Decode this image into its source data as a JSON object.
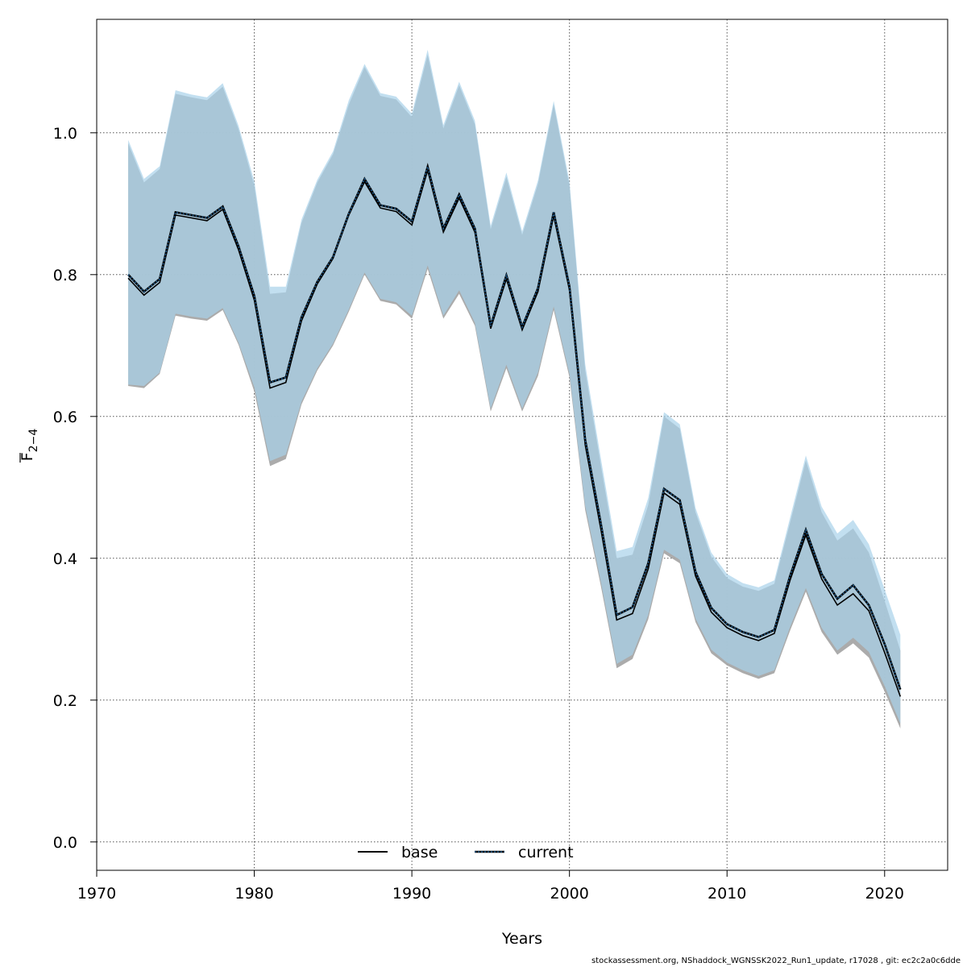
{
  "chart_data": {
    "type": "line",
    "xlabel": "Years",
    "ylabel_main": "F",
    "ylabel_sub": "2−4",
    "xlim": [
      1970,
      2024
    ],
    "ylim": [
      -0.04,
      1.16
    ],
    "xticks": [
      1970,
      1980,
      1990,
      2000,
      2010,
      2020
    ],
    "yticks": [
      0.0,
      0.2,
      0.4,
      0.6,
      0.8,
      1.0
    ],
    "ytick_labels": [
      "0.0",
      "0.2",
      "0.4",
      "0.6",
      "0.8",
      "1.0"
    ],
    "grid": true,
    "legend_position": "bottom-center",
    "x": [
      1972,
      1973,
      1974,
      1975,
      1976,
      1977,
      1978,
      1979,
      1980,
      1981,
      1982,
      1983,
      1984,
      1985,
      1986,
      1987,
      1988,
      1989,
      1990,
      1991,
      1992,
      1993,
      1994,
      1995,
      1996,
      1997,
      1998,
      1999,
      2000,
      2001,
      2002,
      2003,
      2004,
      2005,
      2006,
      2007,
      2008,
      2009,
      2010,
      2011,
      2012,
      2013,
      2014,
      2015,
      2016,
      2017,
      2018,
      2019,
      2020,
      2021
    ],
    "series": [
      {
        "name": "base",
        "style": "solid",
        "color": "#000000",
        "band_color": "#a6a6a6",
        "values": [
          0.795,
          0.771,
          0.789,
          0.884,
          0.88,
          0.876,
          0.892,
          0.835,
          0.764,
          0.64,
          0.648,
          0.735,
          0.787,
          0.823,
          0.884,
          0.931,
          0.894,
          0.889,
          0.87,
          0.947,
          0.86,
          0.908,
          0.86,
          0.724,
          0.794,
          0.722,
          0.776,
          0.883,
          0.778,
          0.56,
          0.44,
          0.313,
          0.322,
          0.385,
          0.492,
          0.476,
          0.375,
          0.324,
          0.302,
          0.291,
          0.284,
          0.294,
          0.369,
          0.433,
          0.371,
          0.334,
          0.35,
          0.326,
          0.267,
          0.205
        ],
        "lower": [
          0.643,
          0.64,
          0.66,
          0.742,
          0.738,
          0.735,
          0.75,
          0.701,
          0.635,
          0.53,
          0.54,
          0.617,
          0.665,
          0.7,
          0.748,
          0.8,
          0.763,
          0.758,
          0.738,
          0.808,
          0.738,
          0.773,
          0.728,
          0.607,
          0.668,
          0.607,
          0.657,
          0.75,
          0.655,
          0.468,
          0.36,
          0.245,
          0.258,
          0.314,
          0.407,
          0.393,
          0.31,
          0.266,
          0.249,
          0.238,
          0.23,
          0.238,
          0.298,
          0.353,
          0.296,
          0.264,
          0.28,
          0.26,
          0.212,
          0.16
        ],
        "upper": [
          0.985,
          0.93,
          0.949,
          1.055,
          1.05,
          1.046,
          1.065,
          1.005,
          0.925,
          0.773,
          0.775,
          0.873,
          0.93,
          0.97,
          1.04,
          1.093,
          1.052,
          1.047,
          1.022,
          1.11,
          1.006,
          1.067,
          1.012,
          0.864,
          0.938,
          0.856,
          0.928,
          1.04,
          0.925,
          0.665,
          0.53,
          0.4,
          0.405,
          0.475,
          0.6,
          0.583,
          0.465,
          0.402,
          0.372,
          0.36,
          0.354,
          0.364,
          0.45,
          0.538,
          0.465,
          0.425,
          0.442,
          0.408,
          0.34,
          0.27
        ]
      },
      {
        "name": "current",
        "style": "dotted",
        "color": "#1f5a8c",
        "band_color": "#a8d2ea",
        "values": [
          0.8,
          0.776,
          0.794,
          0.888,
          0.884,
          0.88,
          0.896,
          0.84,
          0.77,
          0.648,
          0.655,
          0.74,
          0.79,
          0.825,
          0.886,
          0.935,
          0.898,
          0.893,
          0.875,
          0.952,
          0.865,
          0.913,
          0.865,
          0.728,
          0.799,
          0.726,
          0.781,
          0.888,
          0.783,
          0.567,
          0.448,
          0.32,
          0.331,
          0.393,
          0.498,
          0.482,
          0.381,
          0.33,
          0.307,
          0.296,
          0.289,
          0.299,
          0.375,
          0.44,
          0.378,
          0.343,
          0.362,
          0.334,
          0.279,
          0.215
        ],
        "lower": [
          0.645,
          0.643,
          0.662,
          0.745,
          0.741,
          0.738,
          0.753,
          0.704,
          0.641,
          0.537,
          0.546,
          0.621,
          0.668,
          0.703,
          0.751,
          0.803,
          0.766,
          0.761,
          0.742,
          0.813,
          0.742,
          0.778,
          0.732,
          0.611,
          0.673,
          0.611,
          0.662,
          0.755,
          0.66,
          0.474,
          0.366,
          0.251,
          0.264,
          0.32,
          0.412,
          0.398,
          0.315,
          0.271,
          0.253,
          0.242,
          0.234,
          0.242,
          0.303,
          0.358,
          0.302,
          0.27,
          0.288,
          0.268,
          0.22,
          0.167
        ],
        "upper": [
          0.99,
          0.935,
          0.953,
          1.06,
          1.054,
          1.05,
          1.07,
          1.01,
          0.932,
          0.783,
          0.783,
          0.878,
          0.934,
          0.974,
          1.046,
          1.097,
          1.056,
          1.051,
          1.027,
          1.117,
          1.011,
          1.072,
          1.017,
          0.869,
          0.944,
          0.861,
          0.933,
          1.045,
          0.931,
          0.674,
          0.54,
          0.41,
          0.416,
          0.485,
          0.606,
          0.589,
          0.471,
          0.408,
          0.378,
          0.365,
          0.359,
          0.369,
          0.457,
          0.545,
          0.473,
          0.435,
          0.454,
          0.42,
          0.356,
          0.292
        ]
      }
    ]
  },
  "footer": "stockassessment.org, NShaddock_WGNSSK2022_Run1_update, r17028 , git: ec2c2a0c6dde"
}
